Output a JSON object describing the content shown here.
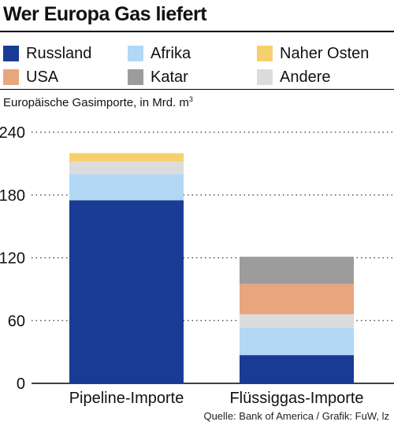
{
  "title": "Wer Europa Gas liefert",
  "subtitle_text": "Europäische Gasimporte, in Mrd. m",
  "subtitle_sup": "3",
  "source": "Quelle: Bank of America / Grafik: FuW, lz",
  "colors": {
    "Russland": "#1a3b94",
    "Afrika": "#b2d8f5",
    "Naher Osten": "#f7d06e",
    "USA": "#e8a67e",
    "Katar": "#9c9c9c",
    "Andere": "#dcdcdc"
  },
  "legend": [
    {
      "name": "Russland"
    },
    {
      "name": "Afrika"
    },
    {
      "name": "Naher Osten"
    },
    {
      "name": "USA"
    },
    {
      "name": "Katar"
    },
    {
      "name": "Andere"
    }
  ],
  "chart_data": {
    "type": "bar",
    "stacked": true,
    "categories": [
      "Pipeline-Importe",
      "Flüssiggas-Importe"
    ],
    "series": [
      {
        "name": "Russland",
        "values": [
          175,
          27
        ]
      },
      {
        "name": "Afrika",
        "values": [
          25,
          26
        ]
      },
      {
        "name": "Andere",
        "values": [
          12,
          13
        ]
      },
      {
        "name": "USA",
        "values": [
          0,
          29
        ]
      },
      {
        "name": "Katar",
        "values": [
          0,
          26
        ]
      },
      {
        "name": "Naher Osten",
        "values": [
          8,
          0
        ]
      }
    ],
    "ylabel": "Europäische Gasimporte, in Mrd. m3",
    "ylim": [
      0,
      240
    ],
    "yticks": [
      0,
      60,
      120,
      180,
      240
    ],
    "grid": "dotted",
    "legend_position": "top"
  }
}
